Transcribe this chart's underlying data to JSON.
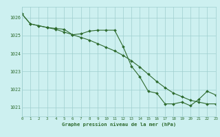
{
  "line1_x": [
    0,
    1,
    2,
    3,
    4,
    5,
    6,
    7,
    8,
    9,
    10,
    11,
    12,
    13,
    14,
    15,
    16,
    17,
    18,
    19,
    20,
    21,
    22,
    23
  ],
  "line1_y": [
    1026.2,
    1025.65,
    1025.55,
    1025.45,
    1025.35,
    1025.2,
    1025.05,
    1024.9,
    1024.75,
    1024.55,
    1024.35,
    1024.15,
    1023.9,
    1023.6,
    1023.25,
    1022.85,
    1022.45,
    1022.1,
    1021.8,
    1021.6,
    1021.4,
    1021.3,
    1021.2,
    1021.2
  ],
  "line2_x": [
    0,
    1,
    2,
    3,
    4,
    5,
    6,
    7,
    8,
    9,
    10,
    11,
    12,
    13,
    14,
    15,
    16,
    17,
    18,
    19,
    20,
    21,
    22,
    23
  ],
  "line2_y": [
    1026.2,
    1025.65,
    1025.55,
    1025.45,
    1025.4,
    1025.35,
    1025.05,
    1025.1,
    1025.25,
    1025.3,
    1025.3,
    1025.3,
    1024.4,
    1023.3,
    1022.7,
    1021.9,
    1021.8,
    1021.2,
    1021.2,
    1021.3,
    1021.1,
    1021.45,
    1021.9,
    1021.7
  ],
  "color": "#2d6a2d",
  "bg_color": "#cdf0f0",
  "grid_color": "#9ecece",
  "xlabel": "Graphe pression niveau de la mer (hPa)",
  "yticks": [
    1021,
    1022,
    1023,
    1024,
    1025,
    1026
  ],
  "ylim_min": 1020.5,
  "ylim_max": 1026.6,
  "xlim_min": 0,
  "xlim_max": 23
}
